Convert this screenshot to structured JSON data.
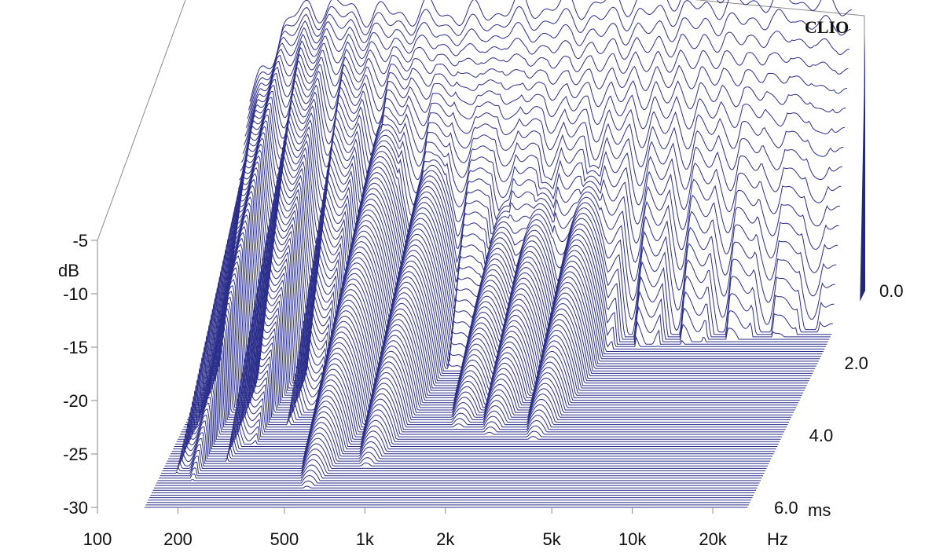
{
  "chart_data": {
    "type": "waterfall",
    "brand": "CLIO",
    "x_axis": {
      "scale": "log",
      "range": [
        100,
        30000
      ],
      "ticks": [
        100,
        200,
        500,
        1000,
        2000,
        5000,
        10000,
        20000
      ],
      "tick_labels": [
        "100",
        "200",
        "500",
        "1k",
        "2k",
        "5k",
        "10k",
        "20k"
      ],
      "unit": "Hz"
    },
    "y_axis": {
      "range": [
        -30,
        -5
      ],
      "ticks": [
        -5,
        -10,
        -15,
        -20,
        -25,
        -30
      ],
      "tick_labels": [
        "-5",
        "-10",
        "-15",
        "-20",
        "-25",
        "-30"
      ],
      "unit": "dB"
    },
    "z_axis": {
      "range": [
        0,
        6
      ],
      "ticks": [
        0,
        2,
        4,
        6
      ],
      "tick_labels": [
        "0.0",
        "2.0",
        "4.0",
        "6.0"
      ],
      "unit": "ms"
    },
    "slice_count": 90,
    "initial_response_db": [
      {
        "f": 150,
        "db": -12.5
      },
      {
        "f": 200,
        "db": -5.3
      },
      {
        "f": 250,
        "db": -3.5
      },
      {
        "f": 300,
        "db": -3.4
      },
      {
        "f": 500,
        "db": -4.2
      },
      {
        "f": 700,
        "db": -3.8
      },
      {
        "f": 1000,
        "db": -4.3
      },
      {
        "f": 1500,
        "db": -3.4
      },
      {
        "f": 2000,
        "db": -3.5
      },
      {
        "f": 3000,
        "db": -3.2
      },
      {
        "f": 5000,
        "db": -2.6
      },
      {
        "f": 8000,
        "db": -1.8
      },
      {
        "f": 12000,
        "db": -1.2
      },
      {
        "f": 16000,
        "db": -0.9
      },
      {
        "f": 20000,
        "db": -1.2
      },
      {
        "f": 25000,
        "db": -1.6
      }
    ],
    "ringing_peaks": [
      {
        "f": 560,
        "db": -8.0
      },
      {
        "f": 850,
        "db": -10.3
      },
      {
        "f": 1600,
        "db": -14.6
      },
      {
        "f": 2150,
        "db": -13.9
      },
      {
        "f": 3200,
        "db": -13.3
      }
    ],
    "colors": {
      "trace": "#2b2e8a",
      "frame": "#8a8a8a",
      "fill": "#23277a"
    }
  }
}
